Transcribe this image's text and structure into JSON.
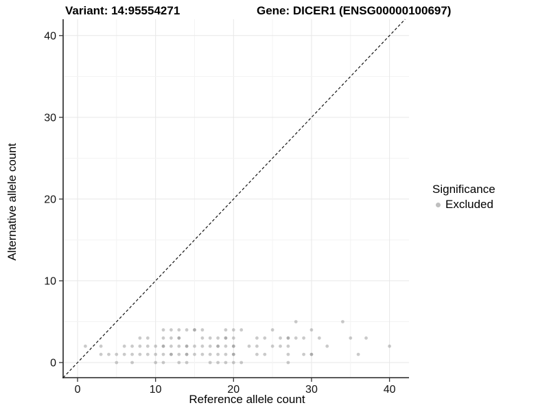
{
  "header": {
    "variant_title": "Variant: 14:95554271",
    "gene_title": "Gene: DICER1 (ENSG00000100697)"
  },
  "legend": {
    "title": "Significance",
    "items": [
      {
        "label": "Excluded",
        "color": "#8a8a8a"
      }
    ]
  },
  "chart_data": {
    "type": "scatter",
    "xlabel": "Reference allele count",
    "ylabel": "Alternative allele count",
    "xlim": [
      -1.85,
      42.5
    ],
    "ylim": [
      -1.85,
      42.0
    ],
    "x_ticks": [
      0,
      10,
      20,
      30,
      40
    ],
    "y_ticks": [
      0,
      10,
      20,
      30,
      40
    ],
    "minor_tick_step": 5,
    "grid": true,
    "legend_position": "right",
    "identity_line": {
      "style": "dashed",
      "comment": "y = x reference line"
    },
    "point_color": "#8a8a8a",
    "point_opacity": 0.45,
    "series": [
      {
        "name": "Excluded",
        "points": [
          [
            5,
            0
          ],
          [
            7,
            0
          ],
          [
            10,
            0
          ],
          [
            11,
            0
          ],
          [
            13,
            0
          ],
          [
            14,
            0
          ],
          [
            17,
            0
          ],
          [
            18,
            0
          ],
          [
            19,
            0
          ],
          [
            20,
            0
          ],
          [
            21,
            0
          ],
          [
            27,
            0
          ],
          [
            3,
            1
          ],
          [
            4,
            1
          ],
          [
            5,
            1
          ],
          [
            6,
            1
          ],
          [
            7,
            1
          ],
          [
            8,
            1
          ],
          [
            9,
            1
          ],
          [
            10,
            1
          ],
          [
            11,
            1
          ],
          [
            12,
            1
          ],
          [
            13,
            1
          ],
          [
            14,
            1
          ],
          [
            15,
            1
          ],
          [
            16,
            1
          ],
          [
            18,
            1
          ],
          [
            19,
            1
          ],
          [
            20,
            1
          ],
          [
            23,
            1
          ],
          [
            24,
            1
          ],
          [
            27,
            1
          ],
          [
            29,
            1
          ],
          [
            30,
            1
          ],
          [
            36,
            1
          ],
          [
            1,
            2
          ],
          [
            3,
            2
          ],
          [
            6,
            2
          ],
          [
            7,
            2
          ],
          [
            8,
            2
          ],
          [
            9,
            2
          ],
          [
            10,
            2
          ],
          [
            11,
            2
          ],
          [
            12,
            2
          ],
          [
            13,
            2
          ],
          [
            14,
            2
          ],
          [
            15,
            2
          ],
          [
            16,
            2
          ],
          [
            17,
            2
          ],
          [
            18,
            2
          ],
          [
            19,
            2
          ],
          [
            20,
            2
          ],
          [
            22,
            2
          ],
          [
            23,
            2
          ],
          [
            25,
            2
          ],
          [
            26,
            2
          ],
          [
            27,
            2
          ],
          [
            32,
            2
          ],
          [
            40,
            2
          ],
          [
            8,
            3
          ],
          [
            9,
            3
          ],
          [
            11,
            3
          ],
          [
            12,
            3
          ],
          [
            13,
            3
          ],
          [
            16,
            3
          ],
          [
            17,
            3
          ],
          [
            18,
            3
          ],
          [
            19,
            3
          ],
          [
            20,
            3
          ],
          [
            23,
            3
          ],
          [
            24,
            3
          ],
          [
            26,
            3
          ],
          [
            27,
            3
          ],
          [
            28,
            3
          ],
          [
            29,
            3
          ],
          [
            31,
            3
          ],
          [
            35,
            3
          ],
          [
            37,
            3
          ],
          [
            11,
            4
          ],
          [
            12,
            4
          ],
          [
            13,
            4
          ],
          [
            14,
            4
          ],
          [
            15,
            4
          ],
          [
            16,
            4
          ],
          [
            19,
            4
          ],
          [
            20,
            4
          ],
          [
            21,
            4
          ],
          [
            25,
            4
          ],
          [
            30,
            4
          ],
          [
            28,
            5
          ],
          [
            34,
            5
          ],
          [
            12,
            1
          ],
          [
            14,
            1
          ],
          [
            17,
            1
          ],
          [
            20,
            1
          ],
          [
            30,
            1
          ],
          [
            11,
            2
          ],
          [
            14,
            2
          ],
          [
            18,
            2
          ],
          [
            20,
            2
          ],
          [
            13,
            3
          ],
          [
            19,
            3
          ],
          [
            27,
            3
          ],
          [
            15,
            4
          ]
        ]
      }
    ]
  }
}
